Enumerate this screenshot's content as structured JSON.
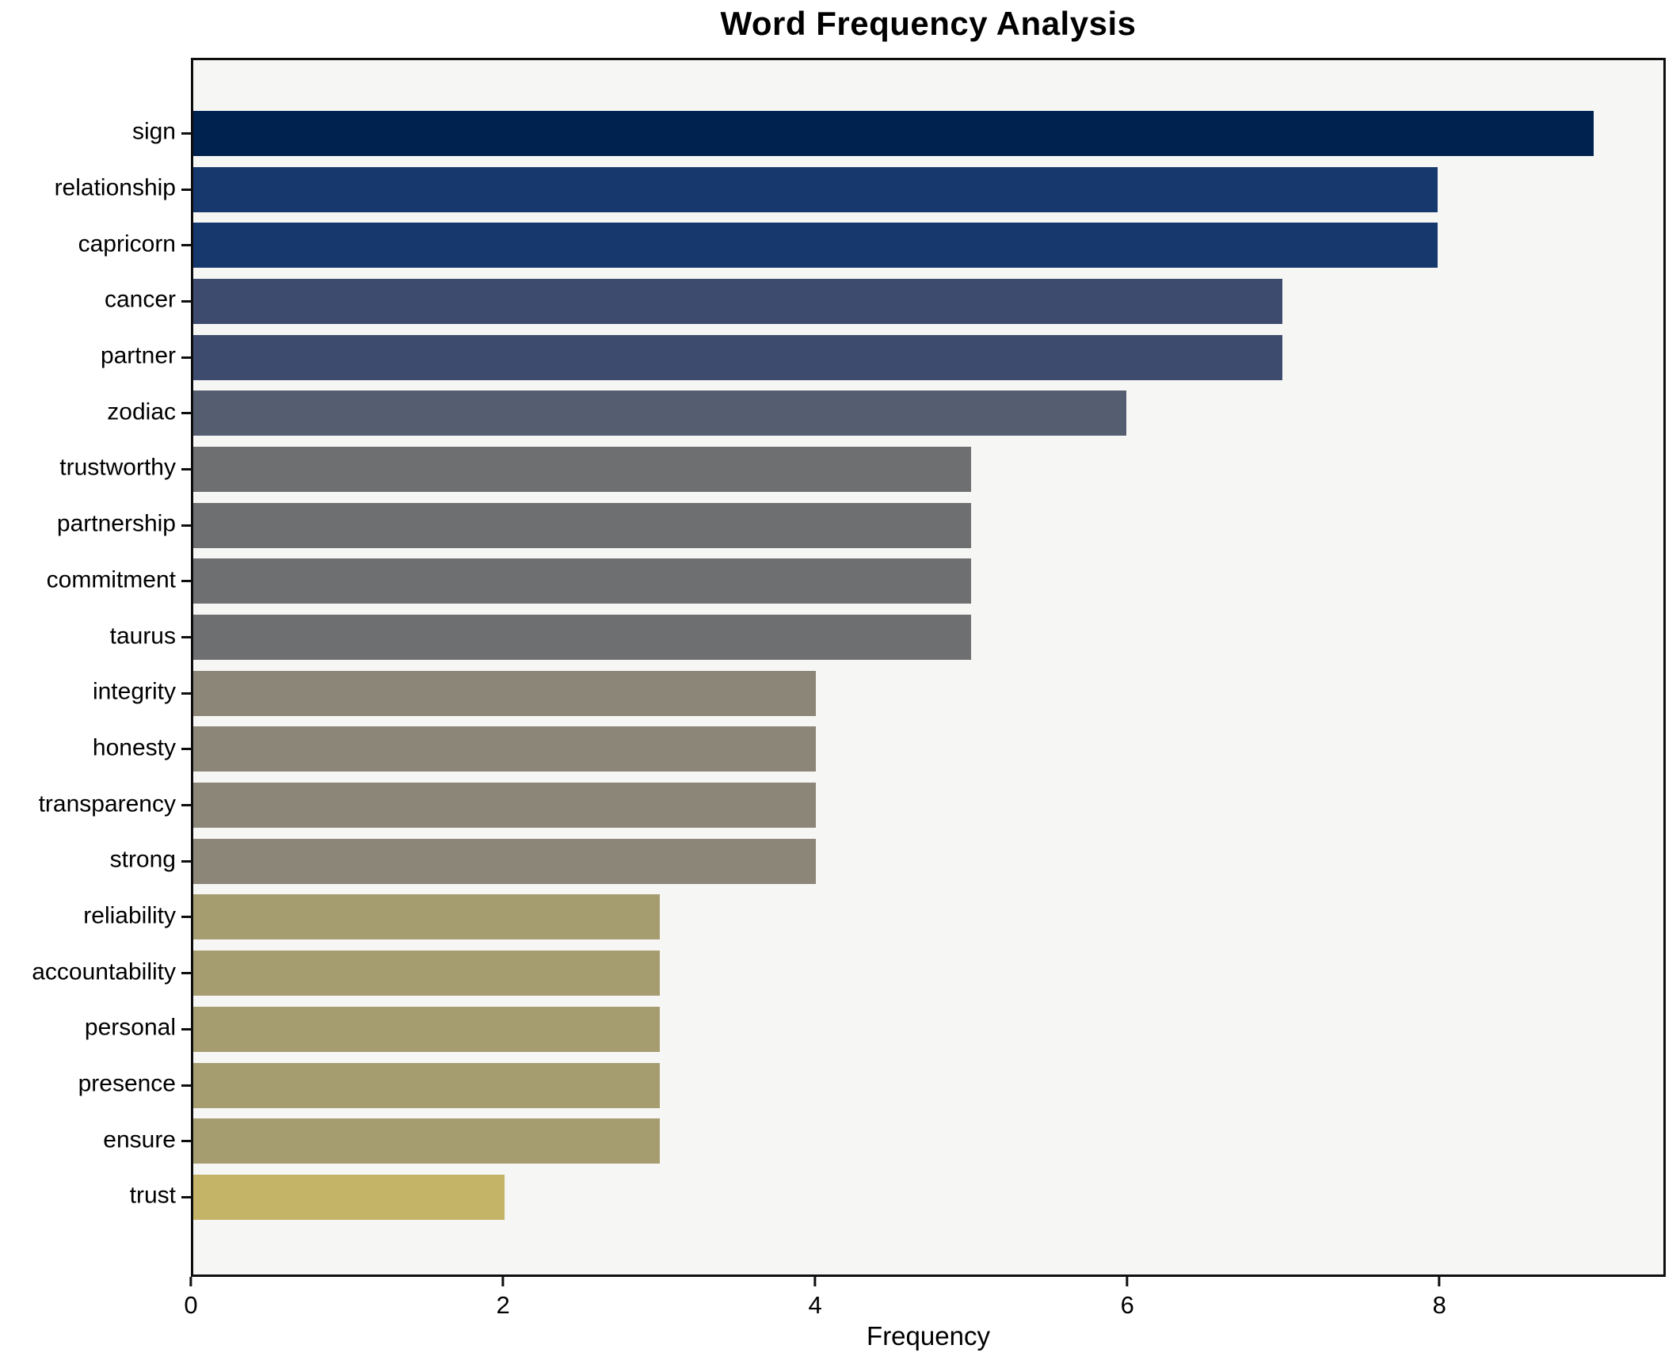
{
  "chart_data": {
    "type": "bar",
    "orientation": "horizontal",
    "title": "Word Frequency Analysis",
    "xlabel": "Frequency",
    "ylabel": "",
    "categories": [
      "sign",
      "relationship",
      "capricorn",
      "cancer",
      "partner",
      "zodiac",
      "trustworthy",
      "partnership",
      "commitment",
      "taurus",
      "integrity",
      "honesty",
      "transparency",
      "strong",
      "reliability",
      "accountability",
      "personal",
      "presence",
      "ensure",
      "trust"
    ],
    "values": [
      9,
      8,
      8,
      7,
      7,
      6,
      5,
      5,
      5,
      5,
      4,
      4,
      4,
      4,
      3,
      3,
      3,
      3,
      3,
      2
    ],
    "xlim": [
      0,
      9.45
    ],
    "x_ticks": [
      0,
      2,
      4,
      6,
      8
    ],
    "grid": false,
    "legend": "none",
    "value_colors": {
      "9": "#00224e",
      "8": "#17386d",
      "7": "#3d4b6e",
      "6": "#555e71",
      "5": "#6e6f71",
      "4": "#8b8678",
      "3": "#a59c70",
      "2": "#c3b468"
    }
  },
  "style": {
    "plot_background": "#f6f6f5",
    "page_background": "#ffffff",
    "spine_color": "#0e0e0e",
    "text_color": "#000000"
  }
}
